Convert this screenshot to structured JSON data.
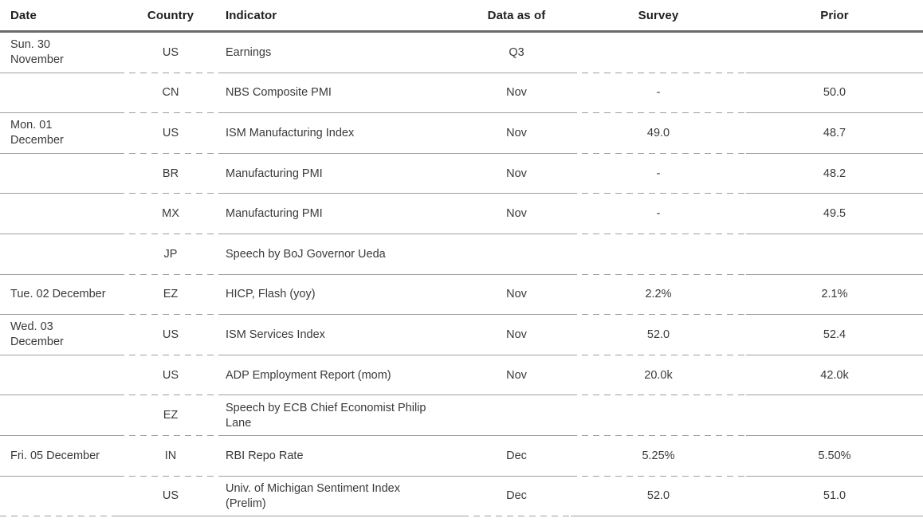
{
  "table": {
    "title": "economic-calendar",
    "columns": [
      {
        "key": "date",
        "label": "Date",
        "align": "left"
      },
      {
        "key": "country",
        "label": "Country",
        "align": "center"
      },
      {
        "key": "indicator",
        "label": "Indicator",
        "align": "left"
      },
      {
        "key": "data_as_of",
        "label": "Data as of",
        "align": "center"
      },
      {
        "key": "survey",
        "label": "Survey",
        "align": "center"
      },
      {
        "key": "prior",
        "label": "Prior",
        "align": "center"
      }
    ],
    "rows": [
      {
        "date": "Sun. 30\nNovember",
        "country": "US",
        "indicator": "Earnings",
        "data_as_of": "Q3",
        "survey": "",
        "prior": ""
      },
      {
        "date": "",
        "country": "CN",
        "indicator": "NBS Composite PMI",
        "data_as_of": "Nov",
        "survey": "-",
        "prior": "50.0"
      },
      {
        "date": "Mon. 01\nDecember",
        "country": "US",
        "indicator": "ISM Manufacturing Index",
        "data_as_of": "Nov",
        "survey": "49.0",
        "prior": "48.7"
      },
      {
        "date": "",
        "country": "BR",
        "indicator": "Manufacturing PMI",
        "data_as_of": "Nov",
        "survey": "-",
        "prior": "48.2"
      },
      {
        "date": "",
        "country": "MX",
        "indicator": "Manufacturing PMI",
        "data_as_of": "Nov",
        "survey": "-",
        "prior": "49.5"
      },
      {
        "date": "",
        "country": "JP",
        "indicator": "Speech by BoJ Governor Ueda",
        "data_as_of": "",
        "survey": "",
        "prior": ""
      },
      {
        "date": "Tue. 02 December",
        "country": "EZ",
        "indicator": "HICP, Flash (yoy)",
        "data_as_of": "Nov",
        "survey": "2.2%",
        "prior": "2.1%"
      },
      {
        "date": "Wed. 03\nDecember",
        "country": "US",
        "indicator": "ISM Services Index",
        "data_as_of": "Nov",
        "survey": "52.0",
        "prior": "52.4"
      },
      {
        "date": "",
        "country": "US",
        "indicator": "ADP Employment Report (mom)",
        "data_as_of": "Nov",
        "survey": "20.0k",
        "prior": "42.0k"
      },
      {
        "date": "",
        "country": "EZ",
        "indicator": "Speech by ECB Chief Economist Philip\nLane",
        "data_as_of": "",
        "survey": "",
        "prior": ""
      },
      {
        "date": "Fri. 05 December",
        "country": "IN",
        "indicator": "RBI Repo Rate",
        "data_as_of": "Dec",
        "survey": "5.25%",
        "prior": "5.50%"
      },
      {
        "date": "",
        "country": "US",
        "indicator": "Univ. of Michigan Sentiment Index\n(Prelim)",
        "data_as_of": "Dec",
        "survey": "52.0",
        "prior": "51.0"
      }
    ],
    "separator_style": {
      "interior_dashed_columns": [
        1,
        4
      ],
      "bottom_dashed_columns": [
        0,
        3
      ]
    }
  },
  "colors": {
    "background": "#ffffff",
    "text": "#3a3a3a",
    "header_text": "#1f1f1f",
    "header_rule": "#6b6b6b",
    "row_separator": "#9e9e9e"
  }
}
